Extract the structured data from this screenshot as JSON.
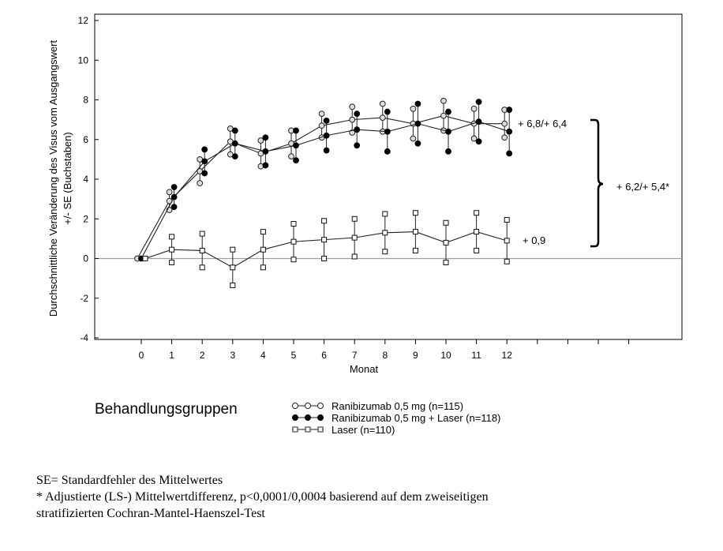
{
  "chart_data": {
    "type": "line",
    "ylabel_line1": "Durchschnittliche Veränderung des Visus vom Ausgangswert",
    "ylabel_line2": "+/- SE (Buchstaben)",
    "xlabel": "Monat",
    "ylim": [
      -4,
      12
    ],
    "y_ticks": [
      12,
      10,
      8,
      6,
      4,
      2,
      0,
      -2,
      -4
    ],
    "y_tick_labels": [
      "12",
      "10",
      "8",
      "6",
      "4",
      "2",
      "0",
      "-2",
      "-4"
    ],
    "x": [
      0,
      1,
      2,
      3,
      4,
      5,
      6,
      7,
      8,
      9,
      10,
      11,
      12
    ],
    "x_tick_labels": [
      "0",
      "1",
      "2",
      "3",
      "4",
      "5",
      "6",
      "7",
      "8",
      "9",
      "10",
      "11",
      "12"
    ],
    "x_axis_extra_ticks": 4,
    "series": [
      {
        "name": "Ranibizumab 0,5 mg (n=115)",
        "marker": "open-circle",
        "values": [
          0,
          2.9,
          4.4,
          5.9,
          5.3,
          5.8,
          6.7,
          7.0,
          7.1,
          6.8,
          7.2,
          6.8,
          6.8
        ],
        "se": [
          0,
          0.45,
          0.6,
          0.65,
          0.65,
          0.65,
          0.6,
          0.65,
          0.7,
          0.75,
          0.75,
          0.75,
          0.7
        ]
      },
      {
        "name": "Ranibizumab 0,5 mg + Laser (n=118)",
        "marker": "filled-circle",
        "values": [
          0,
          3.1,
          4.9,
          5.8,
          5.4,
          5.7,
          6.2,
          6.5,
          6.4,
          6.8,
          6.4,
          6.9,
          6.4
        ],
        "se": [
          0,
          0.5,
          0.6,
          0.65,
          0.7,
          0.75,
          0.75,
          0.8,
          1.0,
          1.0,
          1.0,
          1.0,
          1.1
        ]
      },
      {
        "name": "Laser (n=110)",
        "marker": "open-square",
        "values": [
          0,
          0.45,
          0.4,
          -0.45,
          0.45,
          0.85,
          0.95,
          1.05,
          1.3,
          1.35,
          0.8,
          1.35,
          0.9
        ],
        "se": [
          0,
          0.65,
          0.85,
          0.9,
          0.9,
          0.9,
          0.95,
          0.95,
          0.95,
          0.95,
          1.0,
          0.95,
          1.05
        ]
      }
    ],
    "annotations": {
      "ranibizumab": "+ 6,8/+ 6,4",
      "laser": "+ 0,9",
      "difference": "+ 6,2/+ 5,4*"
    },
    "grid": false
  },
  "legend": {
    "title": "Behandlungsgruppen"
  },
  "footnotes": {
    "se": "SE= Standardfehler des Mittelwertes",
    "adjusted_line1": "* Adjustierte (LS-) Mittelwertdifferenz, p<0,0001/0,0004 basierend auf dem zweiseitigen",
    "adjusted_line2": "stratifizierten Cochran-Mantel-Haenszel-Test"
  },
  "colors": {
    "series_line": "#222222",
    "reference_line": "#a0a0a0",
    "axis": "#000000",
    "open_marker_fill": "#ffffff",
    "filled_marker_fill": "#000000"
  }
}
